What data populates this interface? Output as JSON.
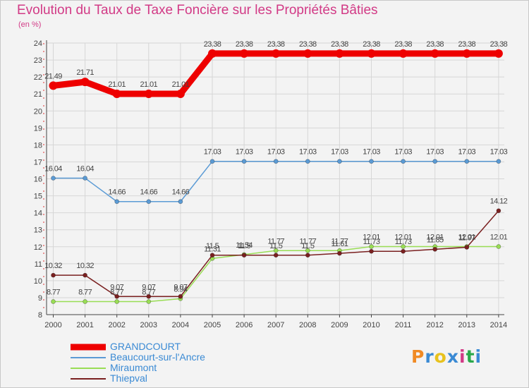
{
  "title": "Evolution du Taux de Taxe Foncière sur les Propriétés Bâties",
  "ylabel": "(en %)",
  "logo": {
    "text": "Proxiti",
    "letters": [
      "P",
      "r",
      "o",
      "x",
      "i",
      "t",
      "i"
    ],
    "colors": [
      "#f08a24",
      "#3a8ad4",
      "#e8c21e",
      "#3a8ad4",
      "#d23a86",
      "#2aa84a",
      "#3a8ad4"
    ]
  },
  "chart_data": {
    "type": "line",
    "x": [
      2000,
      2001,
      2002,
      2003,
      2004,
      2005,
      2006,
      2007,
      2008,
      2009,
      2010,
      2011,
      2012,
      2013,
      2014
    ],
    "ylim": [
      8,
      24
    ],
    "yticks": [
      8,
      9,
      10,
      11,
      12,
      13,
      14,
      15,
      16,
      17,
      18,
      19,
      20,
      21,
      22,
      23,
      24
    ],
    "grid": true,
    "legend_position": "bottom-left",
    "series": [
      {
        "name": "GRANDCOURT",
        "color": "#ee0000",
        "values": [
          21.49,
          21.71,
          21.01,
          21.01,
          21.01,
          23.38,
          23.38,
          23.38,
          23.38,
          23.38,
          23.38,
          23.38,
          23.38,
          23.38,
          23.38
        ],
        "labels": [
          "21.49",
          "21.71",
          "21.01",
          "21.01",
          "21.01",
          "23.38",
          "23.38",
          "23.38",
          "23.38",
          "23.38",
          "23.38",
          "23.38",
          "23.38",
          "23.38",
          "23.38"
        ]
      },
      {
        "name": "Beaucourt-sur-l'Ancre",
        "color": "#5b9bd5",
        "values": [
          16.04,
          16.04,
          14.66,
          14.66,
          14.66,
          17.03,
          17.03,
          17.03,
          17.03,
          17.03,
          17.03,
          17.03,
          17.03,
          17.03,
          17.03
        ],
        "labels": [
          "16.04",
          "16.04",
          "14.66",
          "14.66",
          "14.66",
          "17.03",
          "17.03",
          "17.03",
          "17.03",
          "17.03",
          "17.03",
          "17.03",
          "17.03",
          "17.03",
          "17.03"
        ]
      },
      {
        "name": "Miraumont",
        "color": "#99dd55",
        "values": [
          8.77,
          8.77,
          8.77,
          8.77,
          8.94,
          11.31,
          11.54,
          11.77,
          11.77,
          11.77,
          12.01,
          12.01,
          12.01,
          12.01,
          12.01
        ],
        "labels": [
          "8.77",
          "8.77",
          "8.77",
          "8.77",
          "8.94",
          "11.31",
          "11.54",
          "11.77",
          "11.77",
          "11.77",
          "12.01",
          "12.01",
          "12.01",
          "12.01",
          "12.01"
        ]
      },
      {
        "name": "Thiepval",
        "color": "#7a2020",
        "values": [
          10.32,
          10.32,
          9.07,
          9.07,
          9.07,
          11.5,
          11.5,
          11.5,
          11.5,
          11.61,
          11.73,
          11.73,
          11.85,
          11.97,
          14.12
        ],
        "labels": [
          "10.32",
          "10.32",
          "9.07",
          "9.07",
          "9.07",
          "11.5",
          "11.5",
          "11.5",
          "11.5",
          "11.61",
          "11.73",
          "11.73",
          "11.85",
          "11.97",
          "14.12"
        ]
      }
    ]
  }
}
